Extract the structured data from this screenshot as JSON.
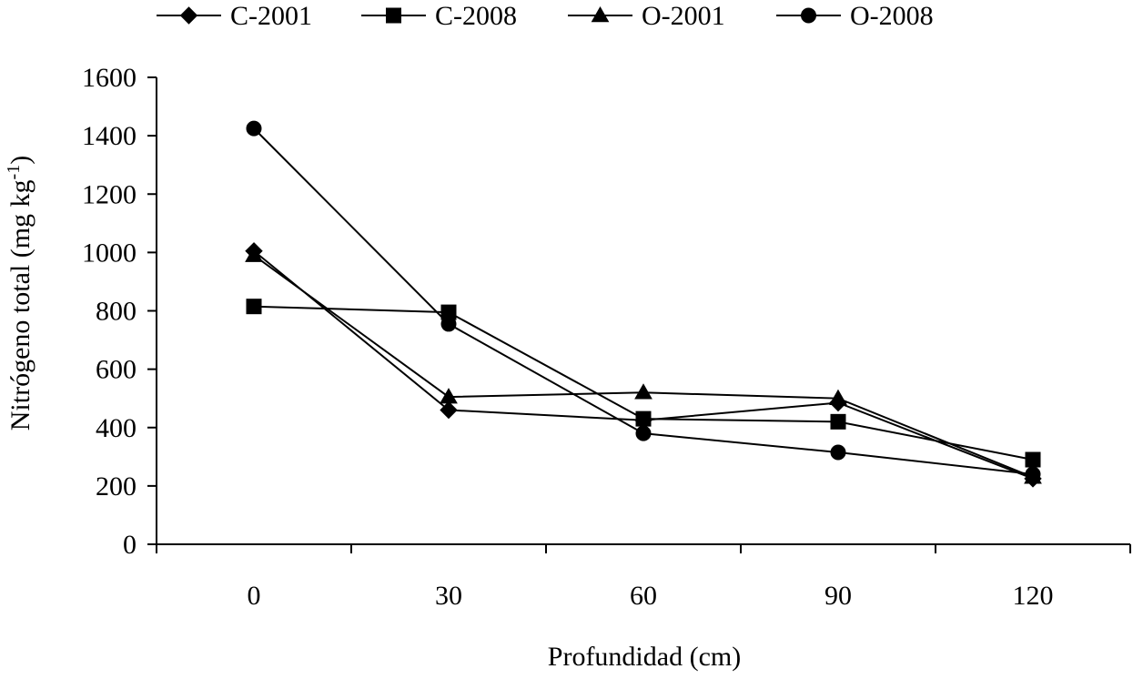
{
  "chart_data": {
    "type": "line",
    "title": "",
    "xlabel": "Profundidad (cm)",
    "ylabel": {
      "main": "Nitrógeno total (mg kg",
      "superscript": "-1",
      "close": ")"
    },
    "categories": [
      "0",
      "30",
      "60",
      "90",
      "120"
    ],
    "x": [
      0,
      30,
      60,
      90,
      120
    ],
    "ylim": [
      0,
      1600
    ],
    "yticks": [
      "0",
      "200",
      "400",
      "600",
      "800",
      "1000",
      "1200",
      "1400",
      "1600"
    ],
    "ytick_values": [
      0,
      200,
      400,
      600,
      800,
      1000,
      1200,
      1400,
      1600
    ],
    "grid": false,
    "legend_position": "top",
    "series": [
      {
        "name": "C-2001",
        "marker": "diamond",
        "values": [
          1005,
          460,
          425,
          485,
          225
        ]
      },
      {
        "name": "C-2008",
        "marker": "square",
        "values": [
          815,
          795,
          430,
          420,
          290
        ]
      },
      {
        "name": "O-2001",
        "marker": "triangle",
        "values": [
          990,
          505,
          520,
          500,
          230
        ]
      },
      {
        "name": "O-2008",
        "marker": "circle",
        "values": [
          1425,
          755,
          380,
          315,
          240
        ]
      }
    ]
  }
}
